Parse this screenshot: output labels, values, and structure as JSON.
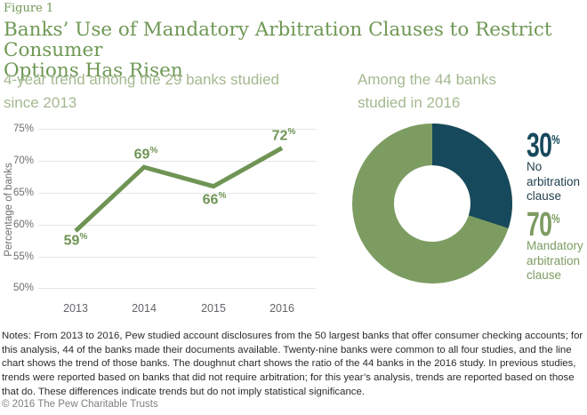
{
  "header": {
    "figure_label": "Figure 1",
    "title_line1": "Banks’ Use of Mandatory Arbitration Clauses to Restrict Consumer",
    "title_line2": "Options Has Risen"
  },
  "misc": {
    "percent_sign": "%"
  },
  "chart_data": [
    {
      "type": "line",
      "title": "4-year trend among the 29 banks studied since 2013",
      "categories": [
        "2013",
        "2014",
        "2015",
        "2016"
      ],
      "values": [
        59,
        69,
        66,
        72
      ],
      "ylabel": "Percentage of banks",
      "yticks": [
        "75%",
        "70%",
        "65%",
        "60%",
        "55%",
        "50%"
      ],
      "ylim": [
        50,
        75
      ],
      "grid": true,
      "legend": "none",
      "line_color": "#6f9454"
    },
    {
      "type": "pie",
      "subtype": "doughnut",
      "title": "Among the 44 banks studied in 2016",
      "segments": [
        {
          "label": "No arbitration clause",
          "value": 30,
          "color": "#17495c"
        },
        {
          "label": "Mandatory arbitration clause",
          "value": 70,
          "color": "#7d9c62"
        }
      ],
      "start_angle_deg": 0,
      "direction": "clockwise"
    }
  ],
  "notes": "Notes: From 2013 to 2016, Pew studied account disclosures from the 50 largest banks that offer consumer checking accounts; for this analysis, 44 of the banks made their documents available. Twenty-nine banks were common to all four studies, and the line chart shows the trend of those banks. The doughnut chart shows the ratio of the 44 banks in the 2016 study. In previous studies, trends were reported based on banks that did not require arbitration; for this year’s analysis, trends are reported based on those that do. These differences indicate trends but do not imply statistical significance.",
  "footer": "© 2016 The Pew Charitable Trusts",
  "colors": {
    "title_green": "#6f9855",
    "subtitle_green": "#a4b890",
    "line_green": "#6f9454",
    "donut_green": "#7d9c62",
    "donut_teal": "#17495c",
    "axis_gray": "#6d6e71",
    "gridline": "#e6e6e6"
  }
}
